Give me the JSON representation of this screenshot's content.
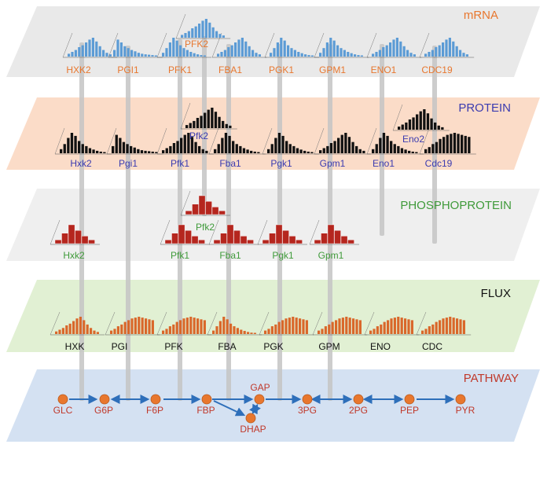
{
  "colors": {
    "mrna_panel": "#e9e9e9",
    "protein_panel": "#fbdcc8",
    "phospho_panel": "#efefef",
    "flux_panel": "#e1f0d3",
    "pathway_panel": "#d4e1f2",
    "pillar": "#c4c4c4",
    "mrna_bar": "#5b9bd5",
    "protein_bar": "#111111",
    "phospho_bar": "#b5261e",
    "flux_bar": "#d9672a",
    "mrna_text": "#e8772e",
    "protein_text": "#3b3bb0",
    "phospho_text": "#3f9a3a",
    "flux_text": "#111111",
    "pathway_text": "#c0392b",
    "node": "#e8772e",
    "arrow": "#2e6fba"
  },
  "layers": {
    "mrna": {
      "title": "mRNA",
      "labels": [
        "HXK2",
        "PGI1",
        "PFK1",
        "FBA1",
        "PGK1",
        "GPM1",
        "ENO1",
        "CDC19"
      ],
      "extra": "PFK2"
    },
    "protein": {
      "title": "PROTEIN",
      "labels": [
        "Hxk2",
        "Pgi1",
        "Pfk1",
        "Fba1",
        "Pgk1",
        "Gpm1",
        "Eno1",
        "Cdc19"
      ],
      "extras": [
        "Pfk2",
        "Eno2"
      ]
    },
    "phospho": {
      "title": "PHOSPHOPROTEIN",
      "labels": [
        "Hxk2",
        "Pfk1",
        "Fba1",
        "Pgk1",
        "Gpm1"
      ],
      "extra": "Pfk2"
    },
    "flux": {
      "title": "FLUX",
      "labels": [
        "HXK",
        "PGI",
        "PFK",
        "FBA",
        "PGK",
        "GPM",
        "ENO",
        "CDC"
      ]
    },
    "pathway": {
      "title": "PATHWAY",
      "nodes": [
        "GLC",
        "G6P",
        "F6P",
        "FBP",
        "GAP",
        "DHAP",
        "3PG",
        "2PG",
        "PEP",
        "PYR"
      ]
    }
  }
}
